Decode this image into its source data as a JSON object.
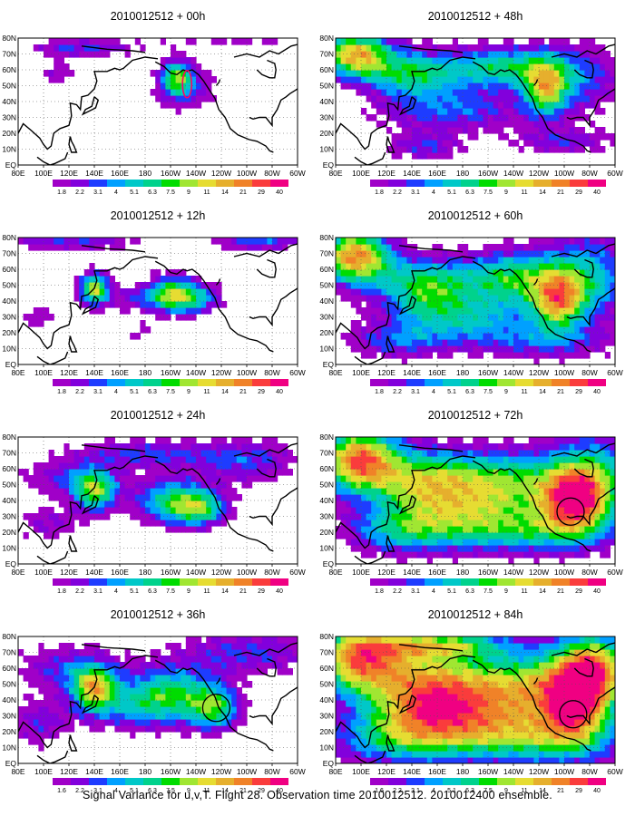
{
  "figure": {
    "caption": "Signal Variance for u,v,T. Flight 28. Observation time 2010012512. 2010012400 ensemble."
  },
  "chart_data": [
    {
      "type": "heatmap",
      "title": "2010012512 + 00h",
      "lead_hours": 0,
      "x_ticks": [
        "80E",
        "100E",
        "120E",
        "140E",
        "160E",
        "180",
        "160W",
        "140W",
        "120W",
        "100W",
        "80W",
        "60W"
      ],
      "y_ticks": [
        "EQ",
        "10N",
        "20N",
        "30N",
        "40N",
        "50N",
        "60N",
        "70N",
        "80N"
      ],
      "colorbar": [
        "1.8",
        "2.2",
        "3.1",
        "4",
        "5.1",
        "6.3",
        "7.5",
        "9",
        "11",
        "14",
        "21",
        "29",
        "40"
      ],
      "contour_rings": [
        {
          "lon": -147,
          "lat": 51,
          "shape": "ellipse",
          "color": "#ff0066"
        }
      ]
    },
    {
      "type": "heatmap",
      "title": "2010012512 + 12h",
      "lead_hours": 12,
      "x_ticks": [
        "80E",
        "100E",
        "120E",
        "140E",
        "160E",
        "180",
        "160W",
        "140W",
        "120W",
        "100W",
        "80W",
        "60W"
      ],
      "y_ticks": [
        "EQ",
        "10N",
        "20N",
        "30N",
        "40N",
        "50N",
        "60N",
        "70N",
        "80N"
      ],
      "colorbar": [
        "1.8",
        "2.2",
        "3.1",
        "4",
        "5.1",
        "6.3",
        "7.5",
        "9",
        "11",
        "14",
        "21",
        "29",
        "40"
      ],
      "contour_rings": []
    },
    {
      "type": "heatmap",
      "title": "2010012512 + 24h",
      "lead_hours": 24,
      "x_ticks": [
        "80E",
        "100E",
        "120E",
        "140E",
        "160E",
        "180",
        "160W",
        "140W",
        "120W",
        "100W",
        "80W",
        "60W"
      ],
      "y_ticks": [
        "EQ",
        "10N",
        "20N",
        "30N",
        "40N",
        "50N",
        "60N",
        "70N",
        "80N"
      ],
      "colorbar": [
        "1.8",
        "2.2",
        "3.1",
        "4",
        "5.1",
        "6.3",
        "7.5",
        "9",
        "11",
        "14",
        "21",
        "29",
        "40"
      ],
      "contour_rings": []
    },
    {
      "type": "heatmap",
      "title": "2010012512 + 36h",
      "lead_hours": 36,
      "x_ticks": [
        "80E",
        "100E",
        "120E",
        "140E",
        "160E",
        "180",
        "160W",
        "140W",
        "120W",
        "100W",
        "80W",
        "60W"
      ],
      "y_ticks": [
        "EQ",
        "10N",
        "20N",
        "30N",
        "40N",
        "50N",
        "60N",
        "70N",
        "80N"
      ],
      "colorbar": [
        "1.6",
        "2.2",
        "3.1",
        "4",
        "5.1",
        "6.3",
        "7.5",
        "9",
        "11",
        "14",
        "21",
        "29",
        "40"
      ],
      "contour_rings": [
        {
          "lon": -124,
          "lat": 35,
          "shape": "circle",
          "color": "#000000"
        }
      ]
    },
    {
      "type": "heatmap",
      "title": "2010012512 + 48h",
      "lead_hours": 48,
      "x_ticks": [
        "80E",
        "100E",
        "120E",
        "140E",
        "160E",
        "180",
        "160W",
        "140W",
        "120W",
        "100W",
        "80W",
        "60W"
      ],
      "y_ticks": [
        "EQ",
        "10N",
        "20N",
        "30N",
        "40N",
        "50N",
        "60N",
        "70N",
        "80N"
      ],
      "colorbar": [
        "1.8",
        "2.2",
        "3.1",
        "4",
        "5.1",
        "6.3",
        "7.5",
        "9",
        "11",
        "14",
        "21",
        "29",
        "40"
      ],
      "contour_rings": []
    },
    {
      "type": "heatmap",
      "title": "2010012512 + 60h",
      "lead_hours": 60,
      "x_ticks": [
        "80E",
        "100E",
        "120E",
        "140E",
        "160E",
        "180",
        "160W",
        "140W",
        "120W",
        "100W",
        "80W",
        "60W"
      ],
      "y_ticks": [
        "EQ",
        "10N",
        "20N",
        "30N",
        "40N",
        "50N",
        "60N",
        "70N",
        "80N"
      ],
      "colorbar": [
        "1.8",
        "2.2",
        "3.1",
        "4",
        "5.1",
        "6.3",
        "7.5",
        "9",
        "11",
        "14",
        "21",
        "29",
        "40"
      ],
      "contour_rings": []
    },
    {
      "type": "heatmap",
      "title": "2010012512 + 72h",
      "lead_hours": 72,
      "x_ticks": [
        "80E",
        "100E",
        "120E",
        "140E",
        "160E",
        "180",
        "160W",
        "140W",
        "120W",
        "100W",
        "80W",
        "60W"
      ],
      "y_ticks": [
        "EQ",
        "10N",
        "20N",
        "30N",
        "40N",
        "50N",
        "60N",
        "70N",
        "80N"
      ],
      "colorbar": [
        "1.8",
        "2.2",
        "3.1",
        "4",
        "5.1",
        "6.3",
        "7.5",
        "9",
        "11",
        "14",
        "21",
        "29",
        "40"
      ],
      "contour_rings": [
        {
          "lon": -95,
          "lat": 33,
          "shape": "circle",
          "color": "#000000"
        }
      ]
    },
    {
      "type": "heatmap",
      "title": "2010012512 + 84h",
      "lead_hours": 84,
      "x_ticks": [
        "80E",
        "100E",
        "120E",
        "140E",
        "160E",
        "180",
        "160W",
        "140W",
        "120W",
        "100W",
        "80W",
        "60W"
      ],
      "y_ticks": [
        "EQ",
        "10N",
        "20N",
        "30N",
        "40N",
        "50N",
        "60N",
        "70N",
        "80N"
      ],
      "colorbar": [
        "1.6",
        "2.2",
        "3.1",
        "4",
        "5.1",
        "6.3",
        "7.5",
        "9",
        "11",
        "14",
        "21",
        "29",
        "40"
      ],
      "contour_rings": [
        {
          "lon": -93,
          "lat": 31,
          "shape": "circle",
          "color": "#000000"
        }
      ]
    }
  ],
  "palette": [
    "#a000c8",
    "#8200dc",
    "#1e3cff",
    "#00a0ff",
    "#00c8c8",
    "#00d28c",
    "#00dc00",
    "#a0e632",
    "#e6dc32",
    "#e6af2d",
    "#f08228",
    "#fa3c3c",
    "#f00082"
  ]
}
